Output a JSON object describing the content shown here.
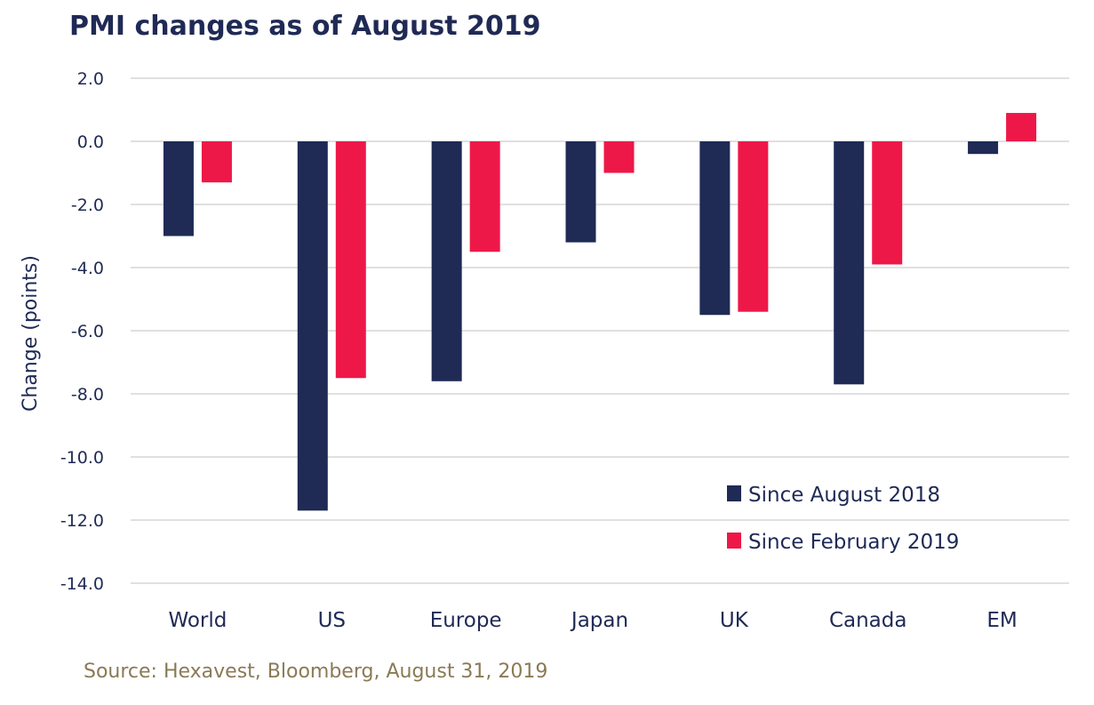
{
  "chart_data": {
    "type": "bar",
    "title": "PMI changes as of August 2019",
    "ylabel": "Change (points)",
    "xlabel": "",
    "categories": [
      "World",
      "US",
      "Europe",
      "Japan",
      "UK",
      "Canada",
      "EM"
    ],
    "series": [
      {
        "name": "Since August 2018",
        "color": "#1f2a55",
        "values": [
          -3.0,
          -11.7,
          -7.6,
          -3.2,
          -5.5,
          -7.7,
          -0.4
        ]
      },
      {
        "name": "Since February 2019",
        "color": "#ee1848",
        "values": [
          -1.3,
          -7.5,
          -3.5,
          -1.0,
          -5.4,
          -3.9,
          0.9
        ]
      }
    ],
    "ylim": [
      -14.0,
      2.0
    ],
    "yticks": [
      "2.0",
      "0.0",
      "-2.0",
      "-4.0",
      "-6.0",
      "-8.0",
      "-10.0",
      "-12.0",
      "-14.0"
    ],
    "grid": true,
    "legend_position": "bottom-right",
    "source": "Source: Hexavest, Bloomberg, August 31, 2019"
  },
  "colors": {
    "title": "#1f2a55",
    "axis_text": "#1f2a55",
    "gridline": "#d6d6d6",
    "source_text": "#8a7a55"
  }
}
